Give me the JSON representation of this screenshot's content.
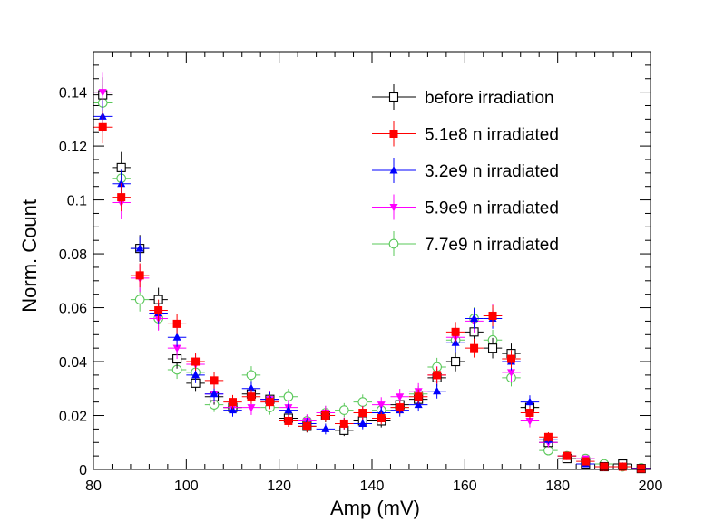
{
  "chart_data": {
    "type": "scatter",
    "title": "",
    "xlabel": "Amp (mV)",
    "ylabel": "Norm. Count",
    "xlim": [
      80,
      200
    ],
    "ylim": [
      0,
      0.155
    ],
    "x_ticks": [
      "80",
      "100",
      "120",
      "140",
      "160",
      "180",
      "200"
    ],
    "y_ticks": [
      "0",
      "0.02",
      "0.04",
      "0.06",
      "0.08",
      "0.1",
      "0.12",
      "0.14"
    ],
    "x": [
      82,
      86,
      90,
      94,
      98,
      102,
      106,
      110,
      114,
      118,
      122,
      126,
      130,
      134,
      138,
      142,
      146,
      150,
      154,
      158,
      162,
      166,
      170,
      174,
      178,
      182,
      186,
      190,
      194,
      198
    ],
    "legend_position": "top-right",
    "series": [
      {
        "name": "before irradiation",
        "color": "#000000",
        "marker": "open-square",
        "values": [
          0.139,
          0.112,
          0.082,
          0.063,
          0.041,
          0.032,
          0.027,
          0.023,
          0.028,
          0.026,
          0.019,
          0.016,
          0.02,
          0.0145,
          0.018,
          0.018,
          0.024,
          0.026,
          0.034,
          0.04,
          0.051,
          0.045,
          0.043,
          0.023,
          0.01,
          0.004,
          0.002,
          0.001,
          0.002,
          0.0003
        ],
        "errors": [
          0.0065,
          0.0058,
          0.005,
          0.0044,
          0.0036,
          0.0032,
          0.003,
          0.0027,
          0.003,
          0.0029,
          0.0025,
          0.0023,
          0.0025,
          0.0021,
          0.0024,
          0.0024,
          0.0028,
          0.0029,
          0.0033,
          0.0036,
          0.004,
          0.0038,
          0.0037,
          0.0027,
          0.0018,
          0.0012,
          0.0008,
          0.0006,
          0.0008,
          0.0003
        ]
      },
      {
        "name": "5.1e8 n irradiated",
        "color": "#ff0000",
        "marker": "filled-square",
        "values": [
          0.127,
          0.101,
          0.072,
          0.059,
          0.054,
          0.04,
          0.033,
          0.025,
          0.027,
          0.025,
          0.018,
          0.016,
          0.02,
          0.017,
          0.021,
          0.019,
          0.023,
          0.027,
          0.035,
          0.051,
          0.045,
          0.057,
          0.041,
          0.021,
          0.012,
          0.005,
          0.003,
          0.001,
          0.001,
          0.0003
        ],
        "errors": [
          0.006,
          0.0052,
          0.0045,
          0.004,
          0.0038,
          0.0033,
          0.003,
          0.0026,
          0.0027,
          0.0026,
          0.0022,
          0.0021,
          0.0023,
          0.0021,
          0.0024,
          0.0023,
          0.0025,
          0.0027,
          0.0031,
          0.0037,
          0.0035,
          0.0039,
          0.0033,
          0.0024,
          0.0018,
          0.0012,
          0.0009,
          0.0005,
          0.0005,
          0.0003
        ]
      },
      {
        "name": "3.2e9 n irradiated",
        "color": "#0000ff",
        "marker": "filled-triangle-up",
        "values": [
          0.131,
          0.106,
          0.082,
          0.058,
          0.049,
          0.035,
          0.028,
          0.022,
          0.03,
          0.026,
          0.022,
          0.017,
          0.015,
          0.017,
          0.017,
          0.021,
          0.022,
          0.024,
          0.029,
          0.047,
          0.056,
          0.056,
          0.04,
          0.025,
          0.011,
          0.005,
          0.002,
          0.001,
          0.001,
          0.0005
        ],
        "errors": [
          0.006,
          0.0052,
          0.0045,
          0.0038,
          0.0035,
          0.003,
          0.0027,
          0.0024,
          0.0028,
          0.0026,
          0.0024,
          0.0021,
          0.002,
          0.0021,
          0.0021,
          0.0023,
          0.0024,
          0.0025,
          0.0027,
          0.0035,
          0.0038,
          0.0038,
          0.0032,
          0.0025,
          0.0017,
          0.0011,
          0.0007,
          0.0005,
          0.0005,
          0.0003
        ]
      },
      {
        "name": "5.9e9 n irradiated",
        "color": "#ff00ff",
        "marker": "filled-triangle-down",
        "values": [
          0.14,
          0.099,
          0.071,
          0.056,
          0.045,
          0.039,
          0.028,
          0.023,
          0.023,
          0.026,
          0.023,
          0.018,
          0.021,
          0.017,
          0.021,
          0.024,
          0.027,
          0.029,
          0.035,
          0.049,
          0.055,
          0.057,
          0.036,
          0.018,
          0.01,
          0.005,
          0.004,
          0.001,
          0.001,
          0.0003
        ],
        "errors": [
          0.0075,
          0.0062,
          0.0052,
          0.0045,
          0.004,
          0.0037,
          0.0031,
          0.0028,
          0.0028,
          0.0029,
          0.0028,
          0.0024,
          0.0026,
          0.0023,
          0.0026,
          0.0028,
          0.0029,
          0.003,
          0.0033,
          0.0039,
          0.0042,
          0.0043,
          0.0034,
          0.0024,
          0.0018,
          0.0013,
          0.0011,
          0.0006,
          0.0006,
          0.0003
        ]
      },
      {
        "name": "7.7e9 n irradiated",
        "color": "#5ac85a",
        "marker": "open-circle",
        "values": [
          0.136,
          0.108,
          0.063,
          0.056,
          0.037,
          0.036,
          0.024,
          0.023,
          0.035,
          0.023,
          0.027,
          0.018,
          0.021,
          0.022,
          0.025,
          0.022,
          0.023,
          0.028,
          0.038,
          0.048,
          0.056,
          0.048,
          0.034,
          0.023,
          0.007,
          0.005,
          0.004,
          0.002,
          0.001,
          0.0005
        ],
        "errors": [
          0.0065,
          0.0058,
          0.0044,
          0.0042,
          0.0034,
          0.0033,
          0.0027,
          0.0027,
          0.0033,
          0.0027,
          0.0029,
          0.0024,
          0.0026,
          0.0026,
          0.0028,
          0.0026,
          0.0027,
          0.003,
          0.0034,
          0.0038,
          0.0041,
          0.0038,
          0.0032,
          0.0027,
          0.0015,
          0.0012,
          0.0011,
          0.0008,
          0.0006,
          0.0004
        ]
      }
    ]
  }
}
